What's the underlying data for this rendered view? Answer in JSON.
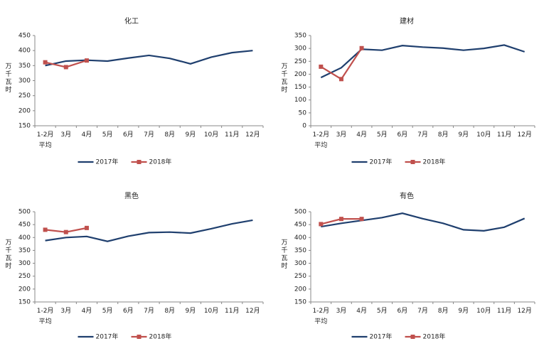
{
  "chart_data": [
    {
      "type": "line",
      "title": "化工",
      "ylabel": "万千瓦时",
      "categories": [
        "1-2月\n平均",
        "3月",
        "4月",
        "5月",
        "6月",
        "7月",
        "8月",
        "9月",
        "10月",
        "11月",
        "12月"
      ],
      "series": [
        {
          "name": "2017年",
          "color": "#1f3f6e",
          "values": [
            350,
            365,
            368,
            365,
            375,
            384,
            374,
            356,
            378,
            393,
            400
          ]
        },
        {
          "name": "2018年",
          "color": "#c0504d",
          "marker": "square",
          "values": [
            361,
            345,
            367,
            null,
            null,
            null,
            null,
            null,
            null,
            null,
            null
          ]
        }
      ],
      "ylim": [
        150,
        450
      ],
      "yticks": [
        150,
        200,
        250,
        300,
        350,
        400,
        450
      ],
      "grid": false,
      "legend": "bottom"
    },
    {
      "type": "line",
      "title": "建材",
      "ylabel": "万千瓦时",
      "categories": [
        "1-2月\n平均",
        "3月",
        "4月",
        "5月",
        "6月",
        "7月",
        "8月",
        "9月",
        "10月",
        "11月",
        "12月"
      ],
      "series": [
        {
          "name": "2017年",
          "color": "#1f3f6e",
          "values": [
            187,
            225,
            297,
            293,
            311,
            305,
            301,
            293,
            300,
            313,
            287
          ]
        },
        {
          "name": "2018年",
          "color": "#c0504d",
          "marker": "square",
          "values": [
            229,
            181,
            301,
            null,
            null,
            null,
            null,
            null,
            null,
            null,
            null
          ]
        }
      ],
      "ylim": [
        0,
        350
      ],
      "yticks": [
        0,
        50,
        100,
        150,
        200,
        250,
        300,
        350
      ],
      "grid": false,
      "legend": "bottom"
    },
    {
      "type": "line",
      "title": "黑色",
      "ylabel": "万千瓦时",
      "categories": [
        "1-2月\n平均",
        "3月",
        "4月",
        "5月",
        "6月",
        "7月",
        "8月",
        "9月",
        "10月",
        "11月",
        "12月"
      ],
      "series": [
        {
          "name": "2017年",
          "color": "#1f3f6e",
          "values": [
            388,
            400,
            404,
            385,
            405,
            419,
            421,
            417,
            434,
            453,
            467
          ]
        },
        {
          "name": "2018年",
          "color": "#c0504d",
          "marker": "square",
          "values": [
            430,
            421,
            437,
            null,
            null,
            null,
            null,
            null,
            null,
            null,
            null
          ]
        }
      ],
      "ylim": [
        150,
        500
      ],
      "yticks": [
        150,
        200,
        250,
        300,
        350,
        400,
        450,
        500
      ],
      "grid": false,
      "legend": "bottom"
    },
    {
      "type": "line",
      "title": "有色",
      "ylabel": "万千瓦时",
      "categories": [
        "1-2月\n平均",
        "3月",
        "4月",
        "5月",
        "6月",
        "7月",
        "8月",
        "9月",
        "10月",
        "11月",
        "12月"
      ],
      "series": [
        {
          "name": "2017年",
          "color": "#1f3f6e",
          "values": [
            442,
            455,
            466,
            477,
            494,
            473,
            455,
            430,
            426,
            440,
            474
          ]
        },
        {
          "name": "2018年",
          "color": "#c0504d",
          "marker": "square",
          "values": [
            452,
            472,
            472,
            null,
            null,
            null,
            null,
            null,
            null,
            null,
            null
          ]
        }
      ],
      "ylim": [
        150,
        500
      ],
      "yticks": [
        150,
        200,
        250,
        300,
        350,
        400,
        450,
        500
      ],
      "grid": false,
      "legend": "bottom"
    }
  ]
}
